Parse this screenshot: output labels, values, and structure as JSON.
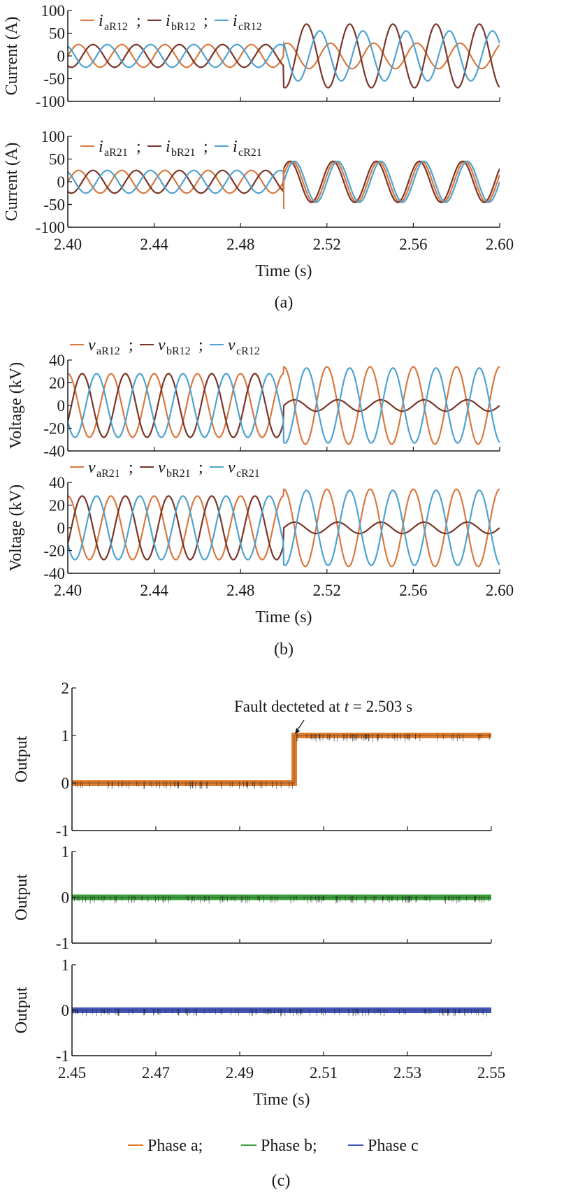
{
  "colors": {
    "phase_a": "#D9793F",
    "phase_b": "#7A3528",
    "phase_c": "#4FA3D1",
    "out_a": "#E07B2A",
    "out_b": "#3BA23B",
    "out_c": "#4356C0",
    "axis": "#1a1a1a"
  },
  "chart_data": [
    {
      "id": "a1",
      "type": "line",
      "ylabel": "Current (A)",
      "xlim": [
        2.4,
        2.6
      ],
      "ylim": [
        -100,
        100
      ],
      "yticks": [
        "100",
        "50",
        "0",
        "-50",
        "-100"
      ],
      "legend": [
        {
          "main": "i",
          "sub": "aR12",
          "sep": ";"
        },
        {
          "main": "i",
          "sub": "bR12",
          "sep": ";"
        },
        {
          "main": "i",
          "sub": "cR12",
          "sep": ""
        }
      ],
      "series": [
        {
          "name": "iaR12",
          "color_key": "phase_a",
          "freq_hz": 50,
          "phase_deg": 0,
          "pre_amp": 25,
          "post_amp": 28,
          "post_phase_deg": 60
        },
        {
          "name": "ibR12",
          "color_key": "phase_b",
          "freq_hz": 50,
          "phase_deg": -120,
          "pre_amp": 25,
          "post_amp": 70,
          "post_phase_deg": -100
        },
        {
          "name": "icR12",
          "color_key": "phase_c",
          "freq_hz": 50,
          "phase_deg": 120,
          "pre_amp": 25,
          "post_amp": 55,
          "post_phase_deg": 150
        }
      ],
      "fault_time": 2.5
    },
    {
      "id": "a2",
      "type": "line",
      "ylabel": "Current (A)",
      "xlim": [
        2.4,
        2.6
      ],
      "ylim": [
        -100,
        100
      ],
      "yticks": [
        "100",
        "50",
        "0",
        "-50",
        "-100"
      ],
      "xticks": [
        "2.40",
        "2.44",
        "2.48",
        "2.52",
        "2.56",
        "2.60"
      ],
      "xlabel": "Time (s)",
      "legend": [
        {
          "main": "i",
          "sub": "aR21",
          "sep": ";"
        },
        {
          "main": "i",
          "sub": "bR21",
          "sep": ";"
        },
        {
          "main": "i",
          "sub": "cR21",
          "sep": ""
        }
      ],
      "series": [
        {
          "name": "iaR21",
          "color_key": "phase_a",
          "freq_hz": 50,
          "phase_deg": 0,
          "pre_amp": 25,
          "post_amp": 45,
          "post_phase_deg": 20
        },
        {
          "name": "ibR21",
          "color_key": "phase_b",
          "freq_hz": 50,
          "phase_deg": -120,
          "pre_amp": 25,
          "post_amp": 45,
          "post_phase_deg": 40
        },
        {
          "name": "icR21",
          "color_key": "phase_c",
          "freq_hz": 50,
          "phase_deg": 120,
          "pre_amp": 25,
          "post_amp": 45,
          "post_phase_deg": 0
        }
      ],
      "fault_time": 2.5
    },
    {
      "id": "b1",
      "type": "line",
      "ylabel": "Voltage (kV)",
      "xlim": [
        2.4,
        2.6
      ],
      "ylim": [
        -40,
        40
      ],
      "yticks": [
        "40",
        "20",
        "0",
        "-20",
        "-40"
      ],
      "legend": [
        {
          "main": "v",
          "sub": "aR12",
          "sep": ";"
        },
        {
          "main": "v",
          "sub": "bR12",
          "sep": ";"
        },
        {
          "main": "v",
          "sub": "cR12",
          "sep": ""
        }
      ],
      "series": [
        {
          "name": "vaR12",
          "color_key": "phase_a",
          "freq_hz": 50,
          "phase_deg": 90,
          "pre_amp": 28,
          "post_amp": 34,
          "post_phase_deg": 90
        },
        {
          "name": "vbR12",
          "color_key": "phase_b",
          "freq_hz": 50,
          "phase_deg": -30,
          "pre_amp": 28,
          "post_amp": 5,
          "post_phase_deg": 0
        },
        {
          "name": "vcR12",
          "color_key": "phase_c",
          "freq_hz": 50,
          "phase_deg": 210,
          "pre_amp": 28,
          "post_amp": 33,
          "post_phase_deg": 260
        }
      ],
      "fault_time": 2.5
    },
    {
      "id": "b2",
      "type": "line",
      "ylabel": "Voltage (kV)",
      "xlim": [
        2.4,
        2.6
      ],
      "ylim": [
        -40,
        40
      ],
      "yticks": [
        "40",
        "20",
        "0",
        "-20",
        "-40"
      ],
      "xticks": [
        "2.40",
        "2.44",
        "2.48",
        "2.52",
        "2.56",
        "2.60"
      ],
      "xlabel": "Time (s)",
      "legend": [
        {
          "main": "v",
          "sub": "aR21",
          "sep": ";"
        },
        {
          "main": "v",
          "sub": "bR21",
          "sep": ";"
        },
        {
          "main": "v",
          "sub": "cR21",
          "sep": ""
        }
      ],
      "series": [
        {
          "name": "vaR21",
          "color_key": "phase_a",
          "freq_hz": 50,
          "phase_deg": 90,
          "pre_amp": 28,
          "post_amp": 34,
          "post_phase_deg": 90
        },
        {
          "name": "vbR21",
          "color_key": "phase_b",
          "freq_hz": 50,
          "phase_deg": -30,
          "pre_amp": 28,
          "post_amp": 5,
          "post_phase_deg": 0
        },
        {
          "name": "vcR21",
          "color_key": "phase_c",
          "freq_hz": 50,
          "phase_deg": 210,
          "pre_amp": 28,
          "post_amp": 33,
          "post_phase_deg": 260
        }
      ],
      "fault_time": 2.5
    },
    {
      "id": "c1",
      "type": "line",
      "ylabel": "Output",
      "xlim": [
        2.45,
        2.55
      ],
      "ylim": [
        -1,
        2
      ],
      "yticks": [
        "2",
        "1",
        "0",
        "-1"
      ],
      "series": [
        {
          "name": "Phase a",
          "color_key": "out_a",
          "steps": [
            {
              "x": 2.45,
              "y": 0
            },
            {
              "x": 2.503,
              "y": 1
            },
            {
              "x": 2.55,
              "y": 1
            }
          ]
        }
      ],
      "annotation": {
        "text_pre": "Fault decteted at ",
        "text_var": "t",
        "text_post": " = 2.503 s",
        "x": 2.503,
        "y": 1
      }
    },
    {
      "id": "c2",
      "type": "line",
      "ylabel": "Output",
      "xlim": [
        2.45,
        2.55
      ],
      "ylim": [
        -1,
        1
      ],
      "yticks": [
        "1",
        "0",
        "-1"
      ],
      "series": [
        {
          "name": "Phase b",
          "color_key": "out_b",
          "steps": [
            {
              "x": 2.45,
              "y": 0
            },
            {
              "x": 2.55,
              "y": 0
            }
          ]
        }
      ]
    },
    {
      "id": "c3",
      "type": "line",
      "ylabel": "Output",
      "xlim": [
        2.45,
        2.55
      ],
      "ylim": [
        -1,
        1
      ],
      "yticks": [
        "1",
        "0",
        "-1"
      ],
      "xticks": [
        "2.45",
        "2.47",
        "2.49",
        "2.51",
        "2.53",
        "2.55"
      ],
      "xlabel": "Time (s)",
      "series": [
        {
          "name": "Phase c",
          "color_key": "out_c",
          "steps": [
            {
              "x": 2.45,
              "y": 0
            },
            {
              "x": 2.55,
              "y": 0
            }
          ]
        }
      ]
    }
  ],
  "captions": {
    "a": "(a)",
    "b": "(b)",
    "c": "(c)"
  },
  "c_legend": [
    {
      "label": "Phase a;",
      "color_key": "out_a"
    },
    {
      "label": "Phase b;",
      "color_key": "out_b"
    },
    {
      "label": "Phase c",
      "color_key": "out_c"
    }
  ]
}
